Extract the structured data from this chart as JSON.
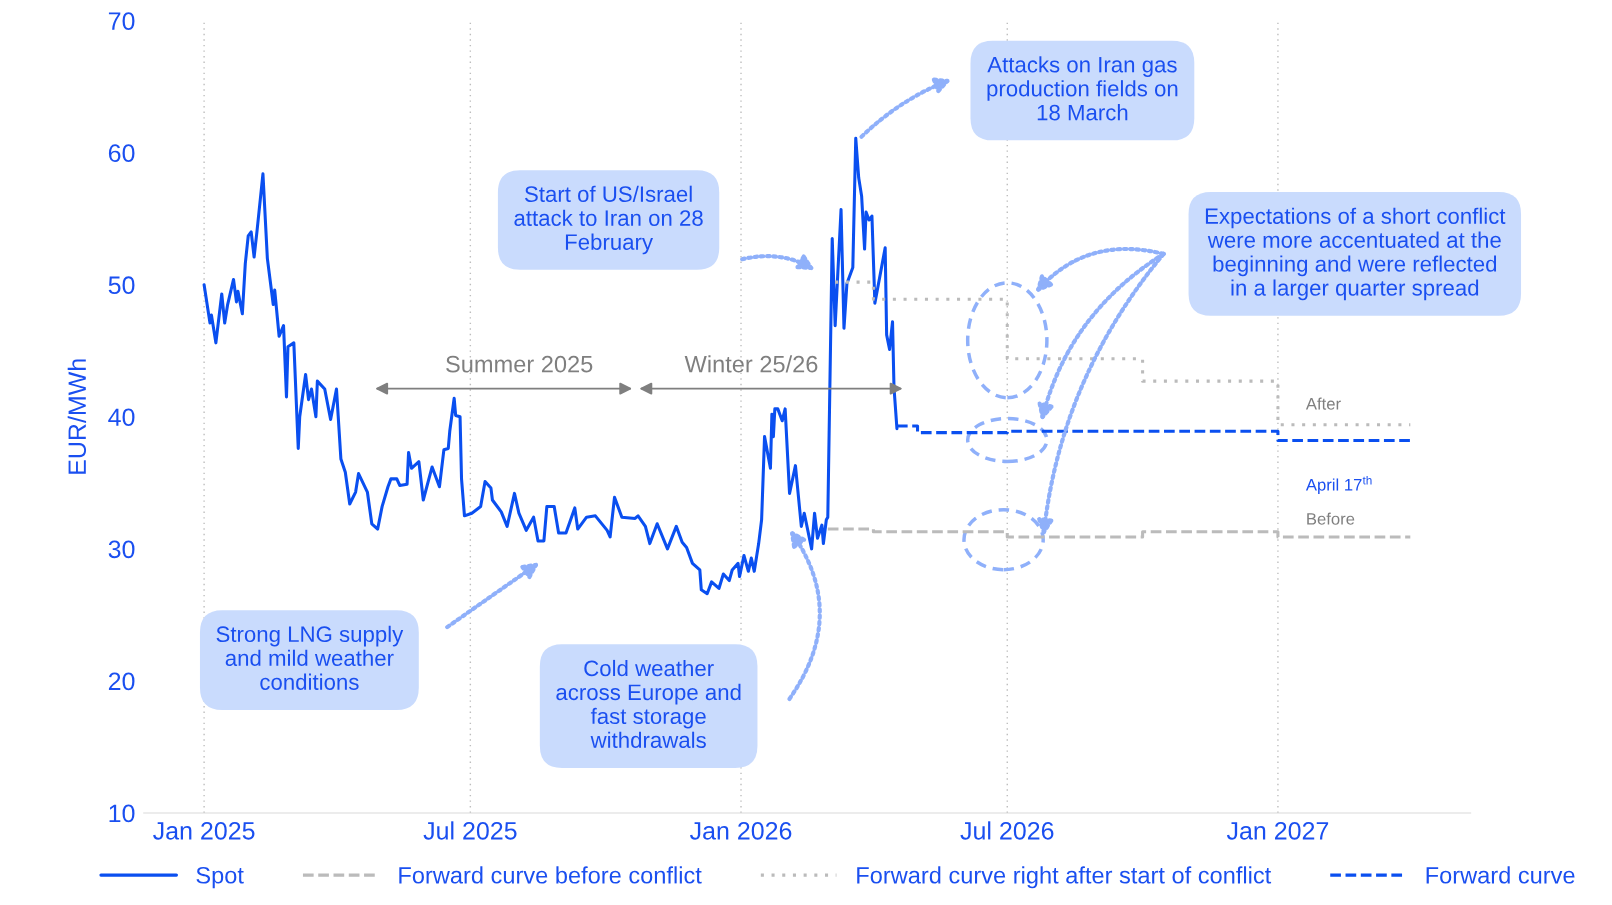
{
  "chart_data": {
    "type": "line",
    "ylabel": "EUR/MWh",
    "xlim": [
      "2024-11-21",
      "2027-05-12"
    ],
    "ylim": [
      10,
      70
    ],
    "yticks": [
      10,
      20,
      30,
      40,
      50,
      60,
      70
    ],
    "xticks": [
      {
        "value": "2025-01-01",
        "label": "Jan 2025"
      },
      {
        "value": "2025-07-01",
        "label": "Jul 2025"
      },
      {
        "value": "2026-01-01",
        "label": "Jan 2026"
      },
      {
        "value": "2026-07-01",
        "label": "Jul 2026"
      },
      {
        "value": "2027-01-01",
        "label": "Jan 2027"
      }
    ],
    "grid": "x",
    "legend": "bottom",
    "series": [
      {
        "name": "Spot",
        "line_style": "solid",
        "color": "#0a4ff0",
        "x": [
          "2025-01-01",
          "2025-01-05",
          "2025-01-06",
          "2025-01-09",
          "2025-01-13",
          "2025-01-15",
          "2025-01-17",
          "2025-01-21",
          "2025-01-23",
          "2025-01-24",
          "2025-01-27",
          "2025-01-29",
          "2025-01-31",
          "2025-02-02",
          "2025-02-04",
          "2025-02-06",
          "2025-02-10",
          "2025-02-13",
          "2025-02-17",
          "2025-02-18",
          "2025-02-21",
          "2025-02-24",
          "2025-02-26",
          "2025-02-27",
          "2025-03-03",
          "2025-03-06",
          "2025-03-07",
          "2025-03-11",
          "2025-03-13",
          "2025-03-15",
          "2025-03-18",
          "2025-03-19",
          "2025-03-24",
          "2025-03-28",
          "2025-04-01",
          "2025-04-04",
          "2025-04-07",
          "2025-04-10",
          "2025-04-14",
          "2025-04-16",
          "2025-04-22",
          "2025-04-25",
          "2025-04-29",
          "2025-05-02",
          "2025-05-06",
          "2025-05-08",
          "2025-05-12",
          "2025-05-14",
          "2025-05-19",
          "2025-05-20",
          "2025-05-22",
          "2025-05-27",
          "2025-05-30",
          "2025-06-05",
          "2025-06-10",
          "2025-06-13",
          "2025-06-16",
          "2025-06-17",
          "2025-06-20",
          "2025-06-21",
          "2025-06-24",
          "2025-06-25",
          "2025-06-27",
          "2025-07-02",
          "2025-07-08",
          "2025-07-11",
          "2025-07-15",
          "2025-07-16",
          "2025-07-22",
          "2025-07-26",
          "2025-07-31",
          "2025-08-03",
          "2025-08-08",
          "2025-08-13",
          "2025-08-16",
          "2025-08-20",
          "2025-08-22",
          "2025-08-27",
          "2025-08-30",
          "2025-09-04",
          "2025-09-10",
          "2025-09-12",
          "2025-09-18",
          "2025-09-24",
          "2025-10-02",
          "2025-10-04",
          "2025-10-07",
          "2025-10-12",
          "2025-10-21",
          "2025-10-23",
          "2025-10-28",
          "2025-10-31",
          "2025-11-05",
          "2025-11-12",
          "2025-11-18",
          "2025-11-22",
          "2025-11-25",
          "2025-11-29",
          "2025-12-04",
          "2025-12-05",
          "2025-12-09",
          "2025-12-12",
          "2025-12-17",
          "2025-12-20",
          "2025-12-24",
          "2025-12-26",
          "2025-12-30",
          "2025-12-31",
          "2026-01-03",
          "2026-01-06",
          "2026-01-08",
          "2026-01-10",
          "2026-01-13",
          "2026-01-15",
          "2026-01-17",
          "2026-01-21",
          "2026-01-22",
          "2026-01-23",
          "2026-01-24",
          "2026-01-26",
          "2026-01-29",
          "2026-01-31",
          "2026-02-03",
          "2026-02-07",
          "2026-02-11",
          "2026-02-13",
          "2026-02-18",
          "2026-02-20",
          "2026-02-22",
          "2026-02-25",
          "2026-02-26",
          "2026-02-28",
          "2026-03-01",
          "2026-03-04",
          "2026-03-06",
          "2026-03-10",
          "2026-03-12",
          "2026-03-14",
          "2026-03-18",
          "2026-03-20",
          "2026-03-22",
          "2026-03-24",
          "2026-03-26",
          "2026-03-27",
          "2026-03-29",
          "2026-03-31",
          "2026-04-02",
          "2026-04-09",
          "2026-04-10",
          "2026-04-12",
          "2026-04-14",
          "2026-04-15",
          "2026-04-17"
        ],
        "values": [
          50.0,
          47.1,
          47.7,
          45.6,
          49.3,
          47.1,
          48.5,
          50.4,
          48.7,
          49.5,
          47.8,
          51.6,
          53.7,
          54.0,
          52.1,
          54.1,
          58.4,
          52.0,
          48.5,
          49.6,
          46.1,
          46.9,
          41.5,
          45.3,
          45.6,
          37.6,
          40.0,
          43.2,
          41.3,
          42.1,
          40.0,
          42.7,
          42.1,
          39.8,
          42.1,
          36.8,
          35.8,
          33.4,
          34.3,
          35.7,
          34.3,
          31.9,
          31.5,
          33.2,
          34.7,
          35.3,
          35.3,
          34.8,
          34.9,
          37.3,
          36.1,
          36.6,
          33.7,
          36.2,
          34.7,
          37.5,
          37.6,
          38.9,
          41.4,
          40.1,
          40.0,
          35.3,
          32.5,
          32.7,
          33.2,
          35.1,
          34.6,
          33.7,
          32.8,
          31.7,
          34.2,
          32.7,
          31.4,
          32.4,
          30.6,
          30.6,
          33.2,
          33.2,
          31.2,
          31.2,
          33.1,
          31.5,
          32.4,
          32.5,
          31.4,
          30.9,
          33.9,
          32.4,
          32.3,
          32.5,
          31.7,
          30.4,
          31.9,
          30.0,
          31.7,
          30.5,
          30.1,
          28.9,
          28.4,
          26.9,
          26.6,
          27.5,
          27.0,
          28.1,
          27.6,
          28.4,
          28.9,
          27.9,
          29.5,
          28.3,
          29.3,
          28.3,
          30.4,
          32.2,
          38.5,
          36.1,
          40.2,
          38.5,
          40.6,
          40.6,
          39.7,
          40.6,
          34.2,
          36.3,
          31.7,
          32.7,
          30.0,
          32.7,
          30.8,
          31.8,
          30.4,
          32.2,
          32.4,
          53.5,
          46.9,
          55.7,
          46.7,
          50.1,
          51.3,
          61.1,
          58.1,
          56.7,
          52.7,
          55.5,
          54.9,
          55.2,
          48.6,
          52.8,
          46.2,
          45.1,
          47.2,
          42.2,
          39.1
        ]
      },
      {
        "name": "Forward curve before conflict",
        "type": "step",
        "line_style": "dashed",
        "color": "#bbbbbb",
        "x": [
          "2026-03-01",
          "2026-04-01",
          "2026-07-01",
          "2026-10-01",
          "2027-01-01",
          "2027-04-01"
        ],
        "values": [
          31.5,
          31.3,
          30.9,
          31.3,
          30.9,
          30.9
        ]
      },
      {
        "name": "Forward curve right after start of conflict",
        "type": "step",
        "line_style": "dotted",
        "color": "#bbbbbb",
        "x": [
          "2026-03-06",
          "2026-04-01",
          "2026-07-01",
          "2026-10-01",
          "2027-01-01",
          "2027-04-01"
        ],
        "values": [
          50.2,
          48.9,
          44.4,
          42.7,
          39.4,
          39.4
        ]
      },
      {
        "name": "Forward curve",
        "type": "step",
        "line_style": "dashed",
        "color": "#0a4ff0",
        "x": [
          "2026-04-17",
          "2026-05-01",
          "2026-07-01",
          "2026-10-01",
          "2027-01-01",
          "2027-04-01"
        ],
        "values": [
          39.3,
          38.8,
          38.9,
          38.9,
          38.2,
          38.2
        ]
      }
    ],
    "annotations": [
      "Summer 2025",
      "Winter 25/26",
      "Strong LNG supply\nand mild weather\nconditions",
      "Cold weather\nacross Europe and\nfast storage\nwithdrawals",
      "Start of US/Israel\nattack to Iran on 28\nFebruary",
      "Attacks on Iran gas\nproduction fields on\n18 March",
      "Expectations of a short conflict\nwere more accentuated at the\nbeginning and were reflected\nin a larger quarter spread",
      {
        "text": "After",
        "x": "2027-01-20",
        "y": 39.4
      },
      {
        "text": "April 17$^{th}$",
        "x": "2027-01-20",
        "y": 38.2
      },
      {
        "text": "Before",
        "x": "2027-01-20",
        "y": 30.9
      }
    ]
  }
}
